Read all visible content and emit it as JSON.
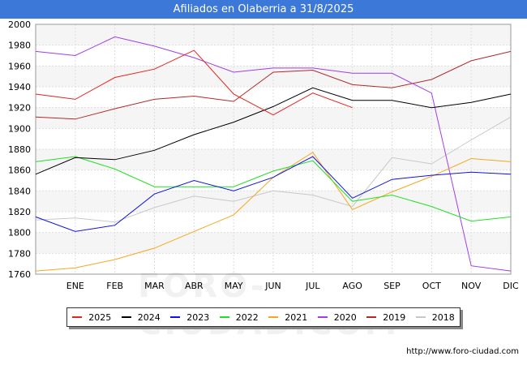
{
  "chart_data": {
    "type": "line",
    "title": "Afiliados en Olaberria a 31/8/2025",
    "categories": [
      "",
      "ENE",
      "FEB",
      "MAR",
      "ABR",
      "MAY",
      "JUN",
      "JUL",
      "AGO",
      "SEP",
      "OCT",
      "NOV",
      "DIC"
    ],
    "ylim": [
      1760,
      2000
    ],
    "yticks": [
      1760,
      1780,
      1800,
      1820,
      1840,
      1860,
      1880,
      1900,
      1920,
      1940,
      1960,
      1980,
      2000
    ],
    "xlabel": "",
    "ylabel": "",
    "grid": true,
    "legend_position": "bottom",
    "series": [
      {
        "name": "2025",
        "color": "#e8221e",
        "values": [
          1933,
          1928,
          1949,
          1957,
          1975,
          1933,
          1913,
          1934,
          1920,
          null,
          null,
          null,
          null
        ]
      },
      {
        "name": "2024",
        "color": "#000000",
        "values": [
          1856,
          1872,
          1870,
          1879,
          1894,
          1906,
          1921,
          1939,
          1927,
          1927,
          1920,
          1925,
          1933
        ]
      },
      {
        "name": "2023",
        "color": "#1010e8",
        "values": [
          1815,
          1801,
          1807,
          1837,
          1850,
          1840,
          1853,
          1873,
          1833,
          1851,
          1855,
          1858,
          1856
        ]
      },
      {
        "name": "2022",
        "color": "#22e022",
        "values": [
          1868,
          1873,
          1861,
          1844,
          1844,
          1844,
          1859,
          1869,
          1830,
          1836,
          1825,
          1811,
          1815
        ]
      },
      {
        "name": "2021",
        "color": "#f5a81d",
        "values": [
          1763,
          1766,
          1774,
          1785,
          1801,
          1817,
          1853,
          1877,
          1822,
          1839,
          1854,
          1871,
          1868
        ]
      },
      {
        "name": "2020",
        "color": "#a23de8",
        "values": [
          1974,
          1970,
          1988,
          1979,
          1968,
          1954,
          1958,
          1958,
          1953,
          1953,
          1934,
          1768,
          1763
        ]
      },
      {
        "name": "2019",
        "color": "#b12a2a",
        "values": [
          1911,
          1909,
          1919,
          1928,
          1931,
          1926,
          1954,
          1956,
          1942,
          1939,
          1947,
          1965,
          1974
        ]
      },
      {
        "name": "2018",
        "color": "#c8c8c8",
        "values": [
          1812,
          1814,
          1810,
          1824,
          1835,
          1830,
          1840,
          1836,
          1825,
          1872,
          1866,
          1889,
          1911
        ]
      }
    ]
  },
  "footer": {
    "url": "http://www.foro-ciudad.com"
  },
  "watermark": "FORO-CIUDAD.COM"
}
